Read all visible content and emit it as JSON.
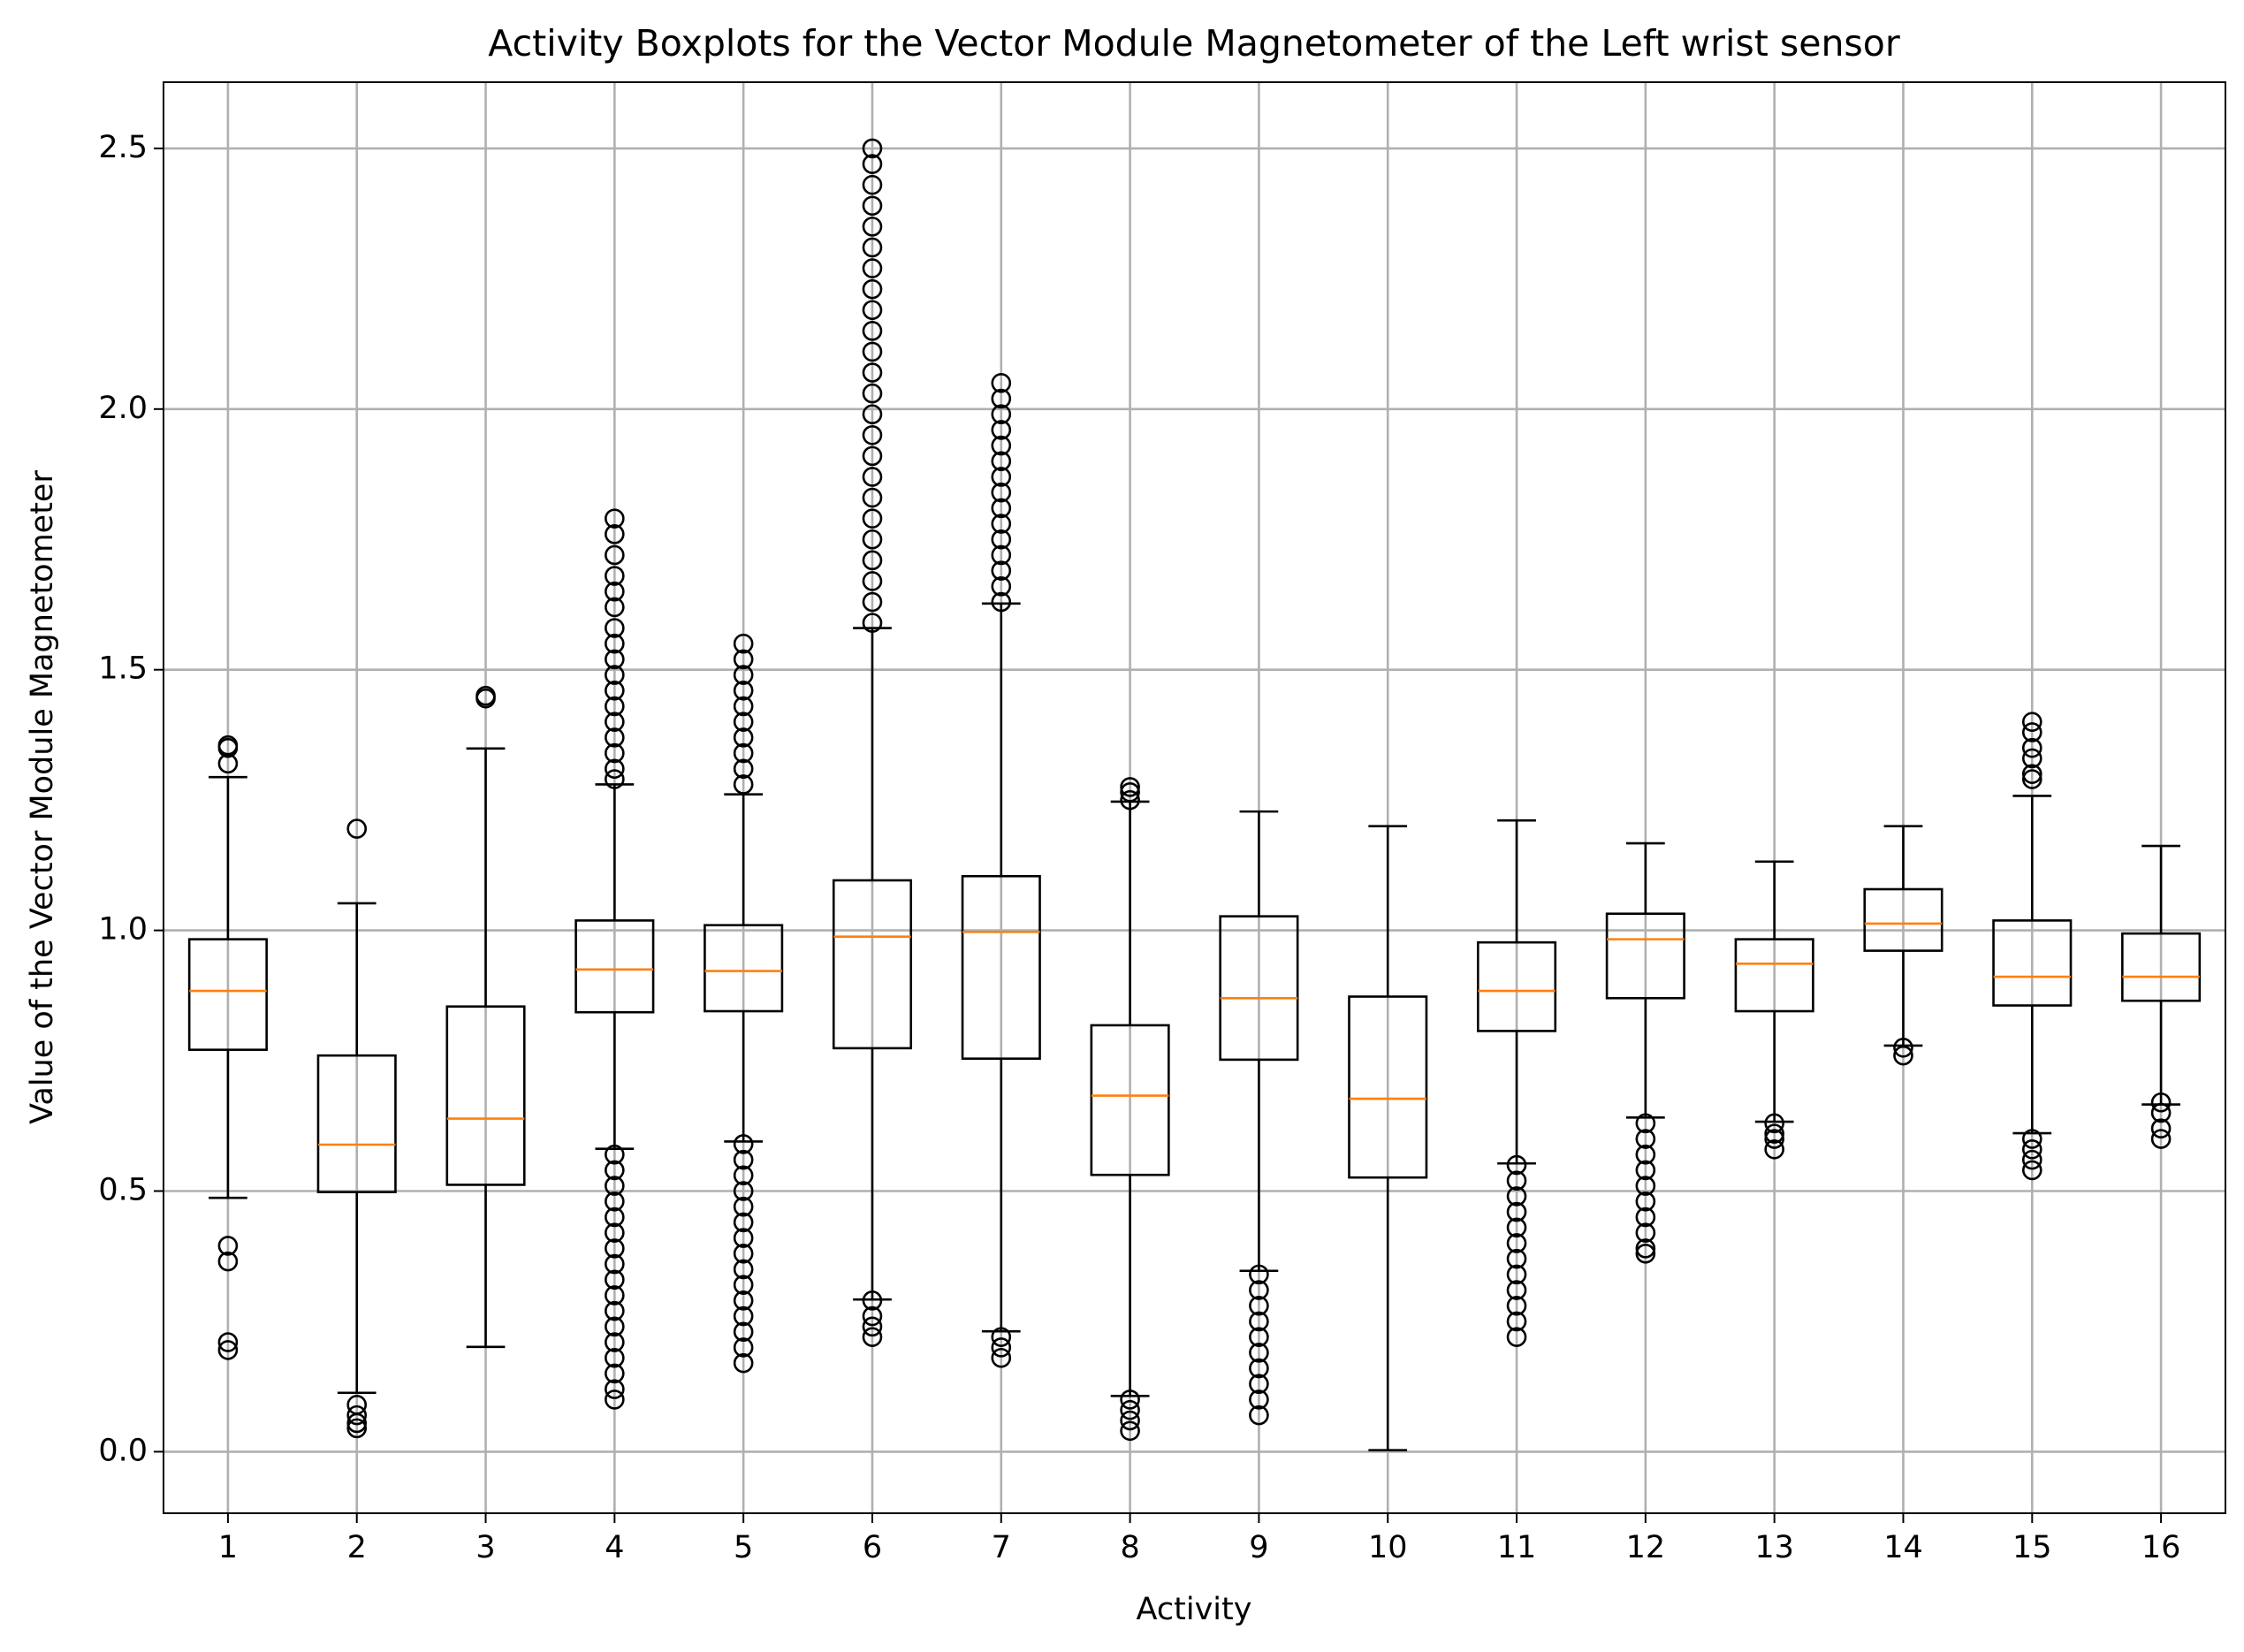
{
  "chart_data": {
    "type": "boxplot",
    "title": "Activity Boxplots for the Vector Module Magnetometer of the Left wrist sensor",
    "x_label": "Activity",
    "y_label": "Value of the Vector Module Magnetometer",
    "categories": [
      "1",
      "2",
      "3",
      "4",
      "5",
      "6",
      "7",
      "8",
      "9",
      "10",
      "11",
      "12",
      "13",
      "14",
      "15",
      "16"
    ],
    "box_color": "#000000",
    "median_color": "#ff7f0e",
    "grid": true,
    "ylim": [
      -0.118,
      2.627
    ],
    "yticks": [
      {
        "value": 0,
        "label": "0.0"
      },
      0.5,
      {
        "value": 1,
        "label": "1.0"
      },
      1.5,
      {
        "value": 2,
        "label": "2.0"
      },
      2.5
    ],
    "boxes": [
      {
        "whislo": 0.487,
        "q1": 0.771,
        "med": 0.884,
        "q3": 0.983,
        "whishi": 1.294,
        "fliers": [
          1.355,
          1.35,
          1.32,
          0.395,
          0.365,
          0.21,
          0.195
        ]
      },
      {
        "whislo": 0.113,
        "q1": 0.498,
        "med": 0.589,
        "q3": 0.76,
        "whishi": 1.052,
        "fliers": [
          1.195,
          0.09,
          0.07,
          0.055,
          0.045
        ]
      },
      {
        "whislo": 0.201,
        "q1": 0.512,
        "med": 0.639,
        "q3": 0.854,
        "whishi": 1.349,
        "fliers": [
          1.45,
          1.445
        ]
      },
      {
        "whislo": 0.581,
        "q1": 0.843,
        "med": 0.925,
        "q3": 1.019,
        "whishi": 1.28,
        "fliers": [
          1.79,
          1.76,
          1.72,
          1.68,
          1.65,
          1.62,
          1.58,
          1.55,
          1.52,
          1.49,
          1.46,
          1.43,
          1.4,
          1.37,
          1.34,
          1.31,
          1.29,
          0.57,
          0.54,
          0.51,
          0.48,
          0.45,
          0.42,
          0.39,
          0.36,
          0.33,
          0.3,
          0.27,
          0.24,
          0.21,
          0.18,
          0.15,
          0.12,
          0.1
        ]
      },
      {
        "whislo": 0.595,
        "q1": 0.845,
        "med": 0.922,
        "q3": 1.01,
        "whishi": 1.261,
        "fliers": [
          1.55,
          1.52,
          1.49,
          1.46,
          1.43,
          1.4,
          1.37,
          1.34,
          1.31,
          1.28,
          0.59,
          0.56,
          0.53,
          0.5,
          0.47,
          0.44,
          0.41,
          0.38,
          0.35,
          0.32,
          0.29,
          0.26,
          0.23,
          0.2,
          0.17
        ]
      },
      {
        "whislo": 0.292,
        "q1": 0.774,
        "med": 0.988,
        "q3": 1.096,
        "whishi": 1.58,
        "fliers": [
          2.5,
          2.47,
          2.43,
          2.39,
          2.35,
          2.31,
          2.27,
          2.23,
          2.19,
          2.15,
          2.11,
          2.07,
          2.03,
          1.99,
          1.95,
          1.91,
          1.87,
          1.83,
          1.79,
          1.75,
          1.71,
          1.67,
          1.63,
          1.59,
          0.29,
          0.26,
          0.24,
          0.22
        ]
      },
      {
        "whislo": 0.231,
        "q1": 0.754,
        "med": 0.997,
        "q3": 1.104,
        "whishi": 1.627,
        "fliers": [
          2.05,
          2.02,
          1.99,
          1.96,
          1.93,
          1.9,
          1.87,
          1.84,
          1.81,
          1.78,
          1.75,
          1.72,
          1.69,
          1.66,
          1.63,
          0.22,
          0.2,
          0.18
        ]
      },
      {
        "whislo": 0.107,
        "q1": 0.531,
        "med": 0.683,
        "q3": 0.818,
        "whishi": 1.247,
        "fliers": [
          1.275,
          1.265,
          1.25,
          0.1,
          0.08,
          0.06,
          0.04
        ]
      },
      {
        "whislo": 0.347,
        "q1": 0.752,
        "med": 0.87,
        "q3": 1.027,
        "whishi": 1.228,
        "fliers": [
          0.34,
          0.31,
          0.28,
          0.25,
          0.22,
          0.19,
          0.16,
          0.13,
          0.1,
          0.07
        ]
      },
      {
        "whislo": 0.003,
        "q1": 0.526,
        "med": 0.677,
        "q3": 0.873,
        "whishi": 1.2,
        "fliers": []
      },
      {
        "whislo": 0.553,
        "q1": 0.807,
        "med": 0.884,
        "q3": 0.977,
        "whishi": 1.211,
        "fliers": [
          0.55,
          0.52,
          0.49,
          0.46,
          0.43,
          0.4,
          0.37,
          0.34,
          0.31,
          0.28,
          0.25,
          0.22
        ]
      },
      {
        "whislo": 0.641,
        "q1": 0.87,
        "med": 0.983,
        "q3": 1.032,
        "whishi": 1.167,
        "fliers": [
          0.63,
          0.6,
          0.57,
          0.54,
          0.51,
          0.48,
          0.45,
          0.42,
          0.39,
          0.38
        ]
      },
      {
        "whislo": 0.633,
        "q1": 0.845,
        "med": 0.936,
        "q3": 0.983,
        "whishi": 1.132,
        "fliers": [
          0.63,
          0.61,
          0.6,
          0.58
        ]
      },
      {
        "whislo": 0.779,
        "q1": 0.961,
        "med": 1.013,
        "q3": 1.079,
        "whishi": 1.2,
        "fliers": [
          0.775,
          0.76
        ]
      },
      {
        "whislo": 0.611,
        "q1": 0.856,
        "med": 0.911,
        "q3": 1.019,
        "whishi": 1.258,
        "fliers": [
          1.4,
          1.38,
          1.35,
          1.33,
          1.3,
          1.29,
          0.6,
          0.58,
          0.56,
          0.54
        ]
      },
      {
        "whislo": 0.666,
        "q1": 0.865,
        "med": 0.911,
        "q3": 0.994,
        "whishi": 1.162,
        "fliers": [
          0.67,
          0.65,
          0.62,
          0.6
        ]
      }
    ]
  }
}
